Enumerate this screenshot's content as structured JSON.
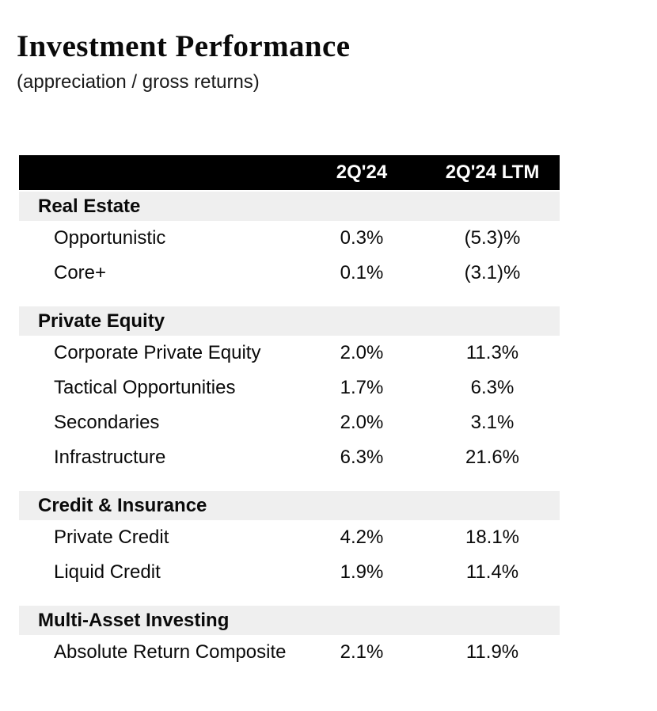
{
  "page": {
    "title": "Investment Performance",
    "subtitle": "(appreciation / gross returns)"
  },
  "colors": {
    "header_bg": "#000000",
    "header_text": "#ffffff",
    "section_band_bg": "#efefef",
    "body_text": "#0a0a0a"
  },
  "table": {
    "columns": [
      "2Q'24",
      "2Q'24 LTM"
    ],
    "sections": [
      {
        "name": "Real Estate",
        "rows": [
          {
            "label": "Opportunistic",
            "q224": "0.3%",
            "ltm": "(5.3)%"
          },
          {
            "label": "Core+",
            "q224": "0.1%",
            "ltm": "(3.1)%"
          }
        ]
      },
      {
        "name": "Private Equity",
        "rows": [
          {
            "label": "Corporate Private Equity",
            "q224": "2.0%",
            "ltm": "11.3%"
          },
          {
            "label": "Tactical Opportunities",
            "q224": "1.7%",
            "ltm": "6.3%"
          },
          {
            "label": "Secondaries",
            "q224": "2.0%",
            "ltm": "3.1%"
          },
          {
            "label": "Infrastructure",
            "q224": "6.3%",
            "ltm": "21.6%"
          }
        ]
      },
      {
        "name": "Credit & Insurance",
        "rows": [
          {
            "label": "Private Credit",
            "q224": "4.2%",
            "ltm": "18.1%"
          },
          {
            "label": "Liquid Credit",
            "q224": "1.9%",
            "ltm": "11.4%"
          }
        ]
      },
      {
        "name": "Multi-Asset Investing",
        "rows": [
          {
            "label": "Absolute Return Composite",
            "q224": "2.1%",
            "ltm": "11.9%"
          }
        ]
      }
    ]
  }
}
